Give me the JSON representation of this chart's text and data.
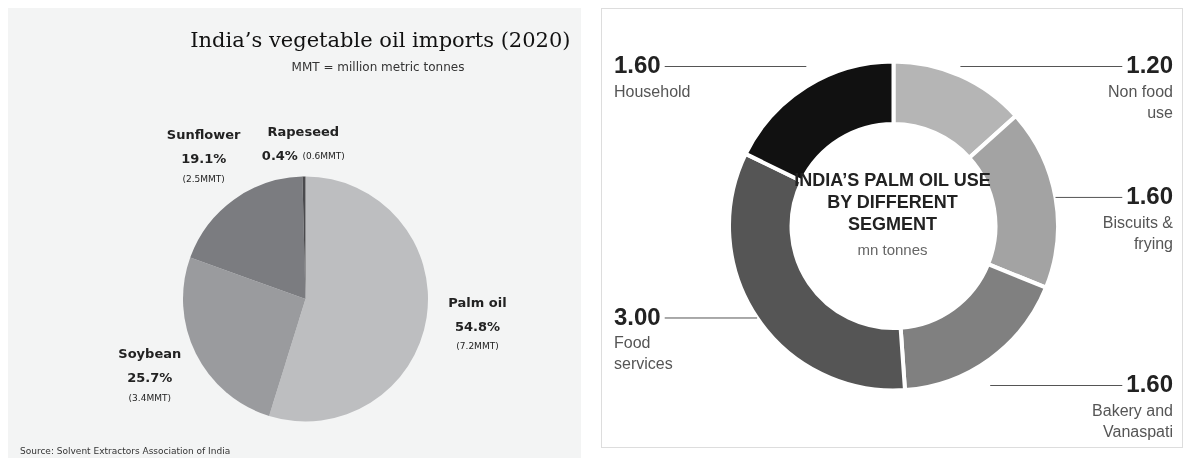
{
  "chart_data": [
    {
      "type": "pie",
      "title": "India’s vegetable oil imports (2020)",
      "subtitle": "MMT = million metric tonnes",
      "categories": [
        "Palm oil",
        "Soybean",
        "Sunflower",
        "Rapeseed"
      ],
      "values": [
        54.8,
        25.7,
        19.1,
        0.4
      ],
      "colors": [
        "#bdbec0",
        "#9a9b9e",
        "#7b7c80",
        "#4a4a4d"
      ],
      "value_labels": [
        "54.8% (7.2MMT)",
        "25.7% (3.4MMT)",
        "19.1% (2.5MMT)",
        "0.4% (0.6MMT)"
      ],
      "annotations": [
        "Source: Solvent Extractors Association of India"
      ]
    },
    {
      "type": "donut",
      "title": "INDIA’S PALM OIL USE BY DIFFERENT SEGMENT",
      "subtitle": "mn tonnes",
      "categories": [
        "Non food use",
        "Biscuits & frying",
        "Bakery and Vanaspati",
        "Food services",
        "Household"
      ],
      "values": [
        1.2,
        1.6,
        1.6,
        3.0,
        1.6
      ],
      "colors": [
        "#b5b5b5",
        "#a3a3a3",
        "#808080",
        "#555555",
        "#111111"
      ],
      "value_labels": [
        "1.20",
        "1.60",
        "1.60",
        "3.00",
        "1.60"
      ]
    }
  ]
}
